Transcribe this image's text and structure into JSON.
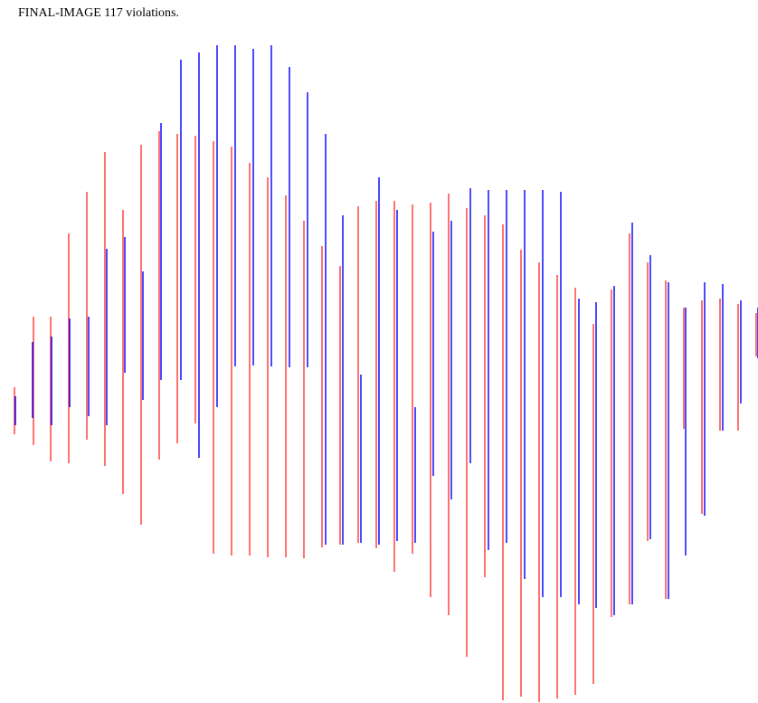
{
  "header": {
    "title": "FINAL-IMAGE 117 violations."
  },
  "colors": {
    "background": "#ffffff",
    "red_lines": "#ff0000",
    "blue_lines": "#0000ff"
  }
}
